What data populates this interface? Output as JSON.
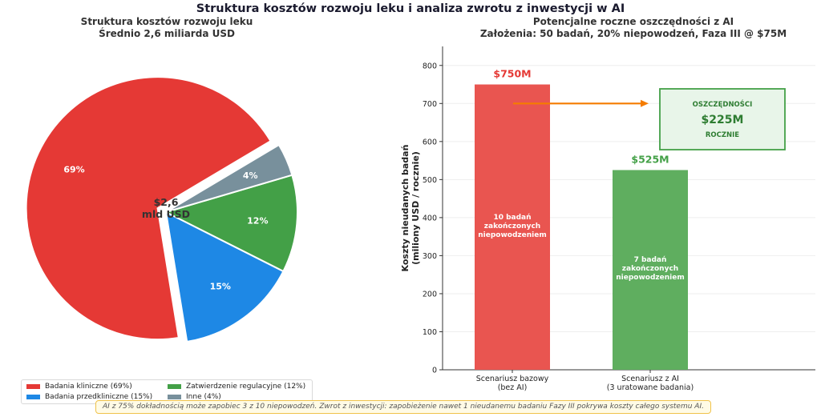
{
  "main_title": "Struktura kosztów rozwoju leku i analiza zwrotu z inwestycji w AI",
  "colors": {
    "clinical": "#e53935",
    "preclinical": "#1e88e5",
    "regulatory": "#43a047",
    "other": "#78909c",
    "base_bar": "#e95550",
    "ai_bar": "#5fae5f",
    "arrow": "#f57c00",
    "savings_border": "#43a047",
    "savings_fill": "#e8f5e9",
    "savings_text": "#2e7d32"
  },
  "chart_data": [
    {
      "type": "pie",
      "title": "Struktura kosztów rozwoju leku",
      "subtitle": "Średnio 2,6 miliarda USD",
      "center_label": [
        "$2,6",
        "mld USD"
      ],
      "slices": [
        {
          "label": "Badania kliniczne (69%)",
          "value": 69,
          "pct_label": "69%",
          "color": "#e53935",
          "explode": true
        },
        {
          "label": "Badania przedkliniczne (15%)",
          "value": 15,
          "pct_label": "15%",
          "color": "#1e88e5",
          "explode": false
        },
        {
          "label": "Zatwierdzenie regulacyjne (12%)",
          "value": 12,
          "pct_label": "12%",
          "color": "#43a047",
          "explode": false
        },
        {
          "label": "Inne (4%)",
          "value": 4,
          "pct_label": "4%",
          "color": "#78909c",
          "explode": false
        }
      ],
      "legend_position": "bottom-left"
    },
    {
      "type": "bar",
      "title": "Potencjalne roczne oszczędności z AI",
      "subtitle": "Założenia: 50 badań, 20% niepowodzeń, Faza III @ $75M",
      "categories": [
        "Scenariusz bazowy\n(bez AI)",
        "Scenariusz z AI\n(3 uratowane badania)"
      ],
      "values": [
        750,
        525
      ],
      "value_labels": [
        "$750M",
        "$525M"
      ],
      "inner_labels": [
        "10 badań\nzakończonych\nniepowodzeniem",
        "7 badań\nzakończonych\nniepowodzeniem"
      ],
      "ylabel": "Koszty nieudanych badań\n(miliony USD / rocznie)",
      "ylim": [
        0,
        850
      ],
      "yticks": [
        0,
        100,
        200,
        300,
        400,
        500,
        600,
        700,
        800
      ],
      "grid": true,
      "annotation": {
        "line1": "OSZCZĘDNOŚCI",
        "line2": "$225M",
        "line3": "ROCZNIE",
        "arrow_y": 700
      }
    }
  ],
  "footnote": "AI z 75% dokładnością może zapobiec 3 z 10 niepowodzeń.  Zwrot z inwestycji: zapobieżenie nawet 1 nieudanemu badaniu Fazy III pokrywa koszty całego systemu AI."
}
